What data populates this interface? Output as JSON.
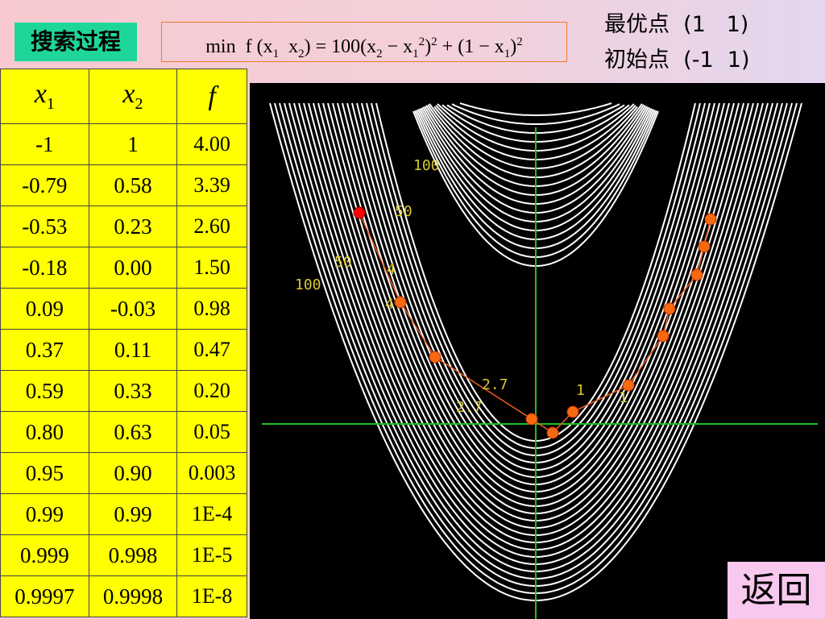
{
  "header": {
    "title": "搜索过程",
    "formula": [
      "min  f (x",
      "1",
      "  x",
      "2",
      ") = 100(x",
      "2",
      " − x",
      "1",
      "2",
      ")",
      "2",
      " + (1 − x",
      "1",
      ")",
      "2"
    ],
    "optimum": "最优点  (1   1)",
    "start": "初始点  (-1  1)"
  },
  "table": {
    "columns": [
      {
        "base": "x",
        "sub": "1"
      },
      {
        "base": "x",
        "sub": "2"
      },
      {
        "base": "f"
      }
    ],
    "rows": [
      [
        "-1",
        "1",
        "4.00"
      ],
      [
        "-0.79",
        "0.58",
        "3.39"
      ],
      [
        "-0.53",
        "0.23",
        "2.60"
      ],
      [
        "-0.18",
        "0.00",
        "1.50"
      ],
      [
        "0.09",
        "-0.03",
        "0.98"
      ],
      [
        "0.37",
        "0.11",
        "0.47"
      ],
      [
        "0.59",
        "0.33",
        "0.20"
      ],
      [
        "0.80",
        "0.63",
        "0.05"
      ],
      [
        "0.95",
        "0.90",
        "0.003"
      ],
      [
        "0.99",
        "0.99",
        "1E-4"
      ],
      [
        "0.999",
        "0.998",
        "1E-5"
      ],
      [
        "0.9997",
        "0.9998",
        "1E-8"
      ]
    ]
  },
  "plot": {
    "labels": [
      "100",
      "50",
      "50",
      "100",
      "4",
      "4",
      "2.7",
      "2.7",
      "1",
      "1"
    ]
  },
  "button": "返回"
}
